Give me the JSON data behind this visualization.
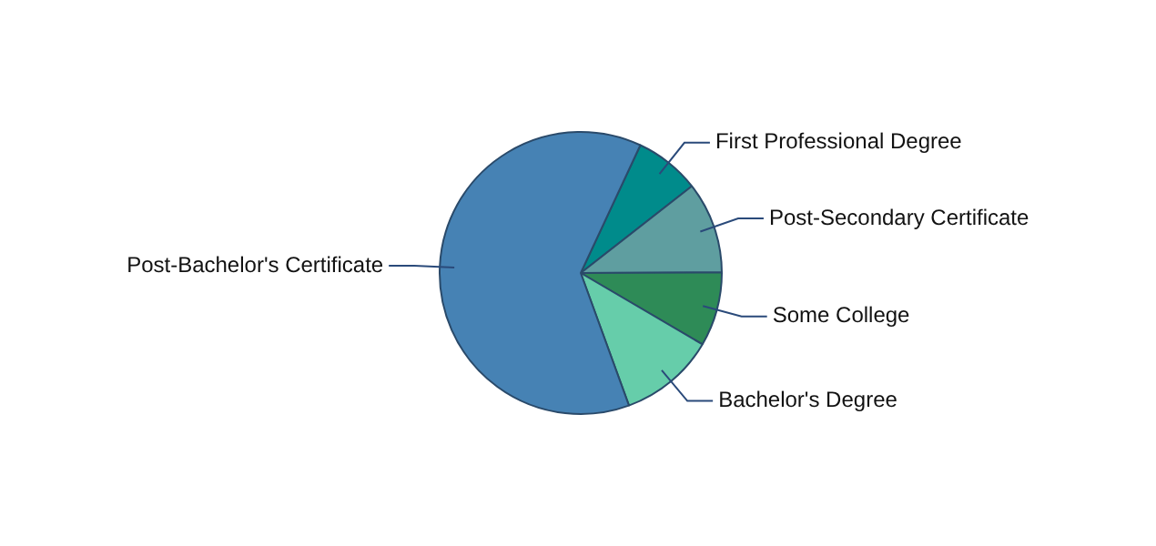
{
  "chart_data": {
    "type": "pie",
    "categories": [
      "First Professional Degree",
      "Post-Secondary Certificate",
      "Some College",
      "Bachelor's Degree",
      "Post-Bachelor's Certificate"
    ],
    "values": [
      7.5,
      10.5,
      8.5,
      11,
      62.5
    ],
    "colors": [
      "#008b8b",
      "#5f9ea0",
      "#2e8b57",
      "#66cdaa",
      "#4682b4"
    ],
    "legend": false
  }
}
